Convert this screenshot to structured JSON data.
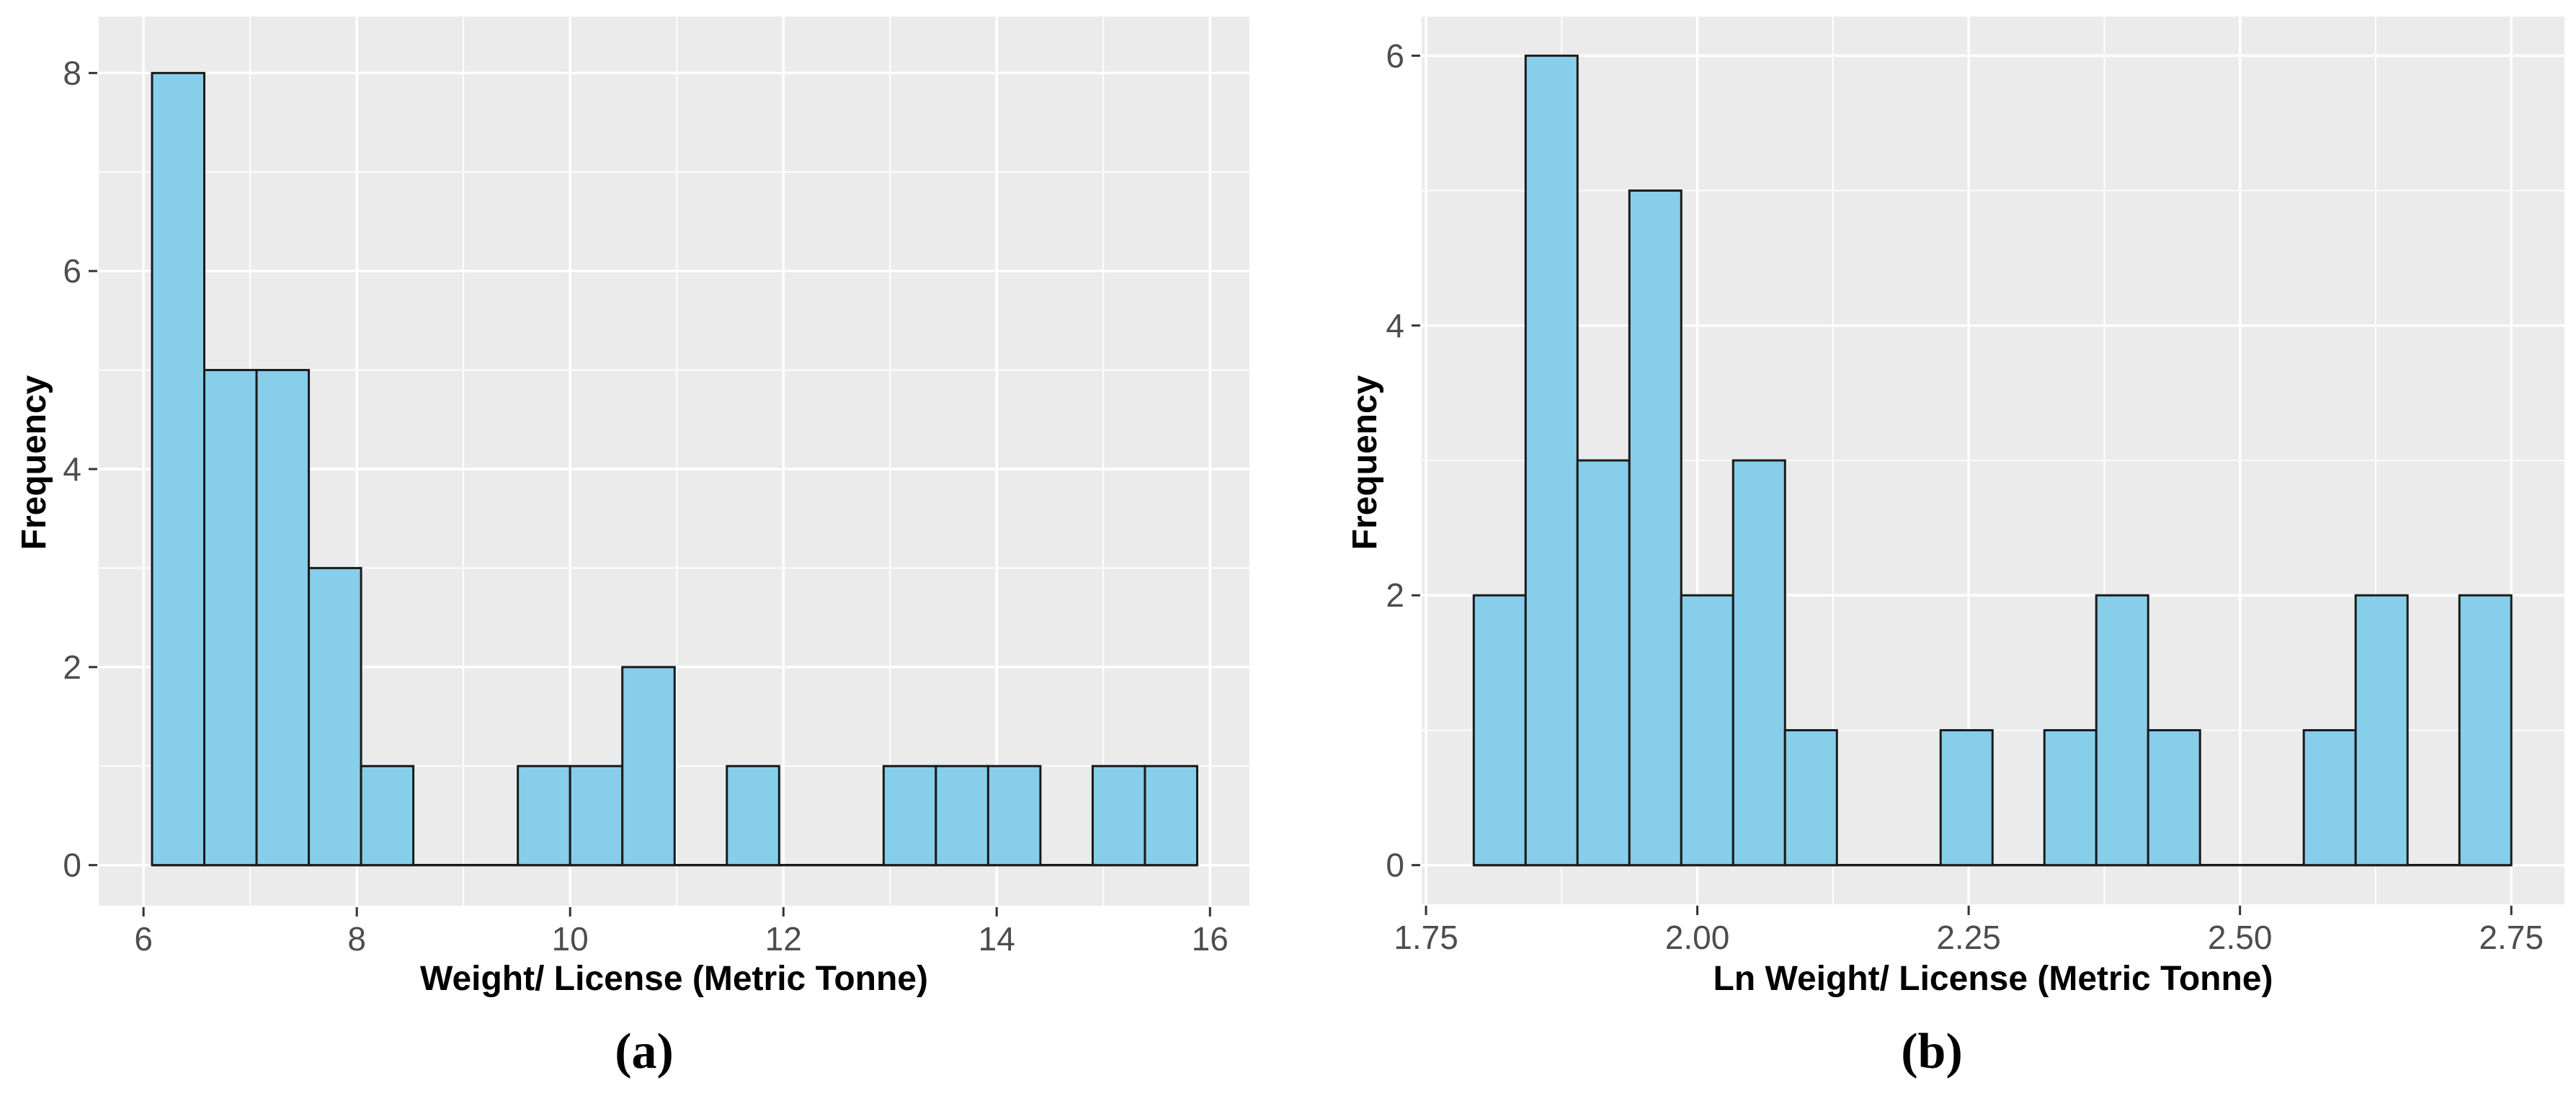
{
  "figure": {
    "background": "#ffffff",
    "description": "Two side-by-side frequency histograms"
  },
  "colors": {
    "bar_fill": "#87CEEB",
    "bar_stroke": "#1A1A1A",
    "panel_bg": "#EBEBEB",
    "grid": "#FFFFFF",
    "tick_text": "#4D4D4D",
    "tick_mark": "#333333",
    "axis_title": "#000000"
  },
  "chart_data": [
    {
      "type": "bar",
      "variant": "histogram",
      "panel": "a",
      "caption": "(a)",
      "title": "",
      "xlabel": "Weight/ License (Metric Tonne)",
      "ylabel": "Frequency",
      "bin_start": 6.08,
      "bin_width": 0.49,
      "counts": [
        8,
        5,
        5,
        3,
        1,
        0,
        0,
        1,
        1,
        2,
        0,
        1,
        0,
        0,
        1,
        1,
        1,
        0,
        1,
        1
      ],
      "total_observations": 32,
      "xlim": [
        5.58,
        16.37
      ],
      "ylim": [
        -0.41,
        8.57
      ],
      "x_ticks": [
        6,
        8,
        10,
        12,
        14,
        16
      ],
      "x_tick_labels": [
        "6",
        "8",
        "10",
        "12",
        "14",
        "16"
      ],
      "x_minor_ticks": [
        7,
        9,
        11,
        13,
        15
      ],
      "y_ticks": [
        0,
        2,
        4,
        6,
        8
      ],
      "y_tick_labels": [
        "0",
        "2",
        "4",
        "6",
        "8"
      ],
      "y_minor_ticks": [
        1,
        3,
        5,
        7
      ],
      "grid": "major+minor white on gray panel",
      "legend": "none"
    },
    {
      "type": "bar",
      "variant": "histogram",
      "panel": "b",
      "caption": "(b)",
      "title": "",
      "xlabel": "Ln Weight/ License (Metric Tonne)",
      "ylabel": "Frequency",
      "bin_start": 1.794,
      "bin_width": 0.0478,
      "counts": [
        2,
        6,
        3,
        5,
        2,
        3,
        1,
        0,
        0,
        1,
        0,
        1,
        2,
        1,
        0,
        0,
        1,
        2,
        0,
        2
      ],
      "total_observations": 32,
      "xlim": [
        1.746,
        2.799
      ],
      "ylim": [
        -0.29,
        6.29
      ],
      "x_ticks": [
        1.75,
        2.0,
        2.25,
        2.5,
        2.75
      ],
      "x_tick_labels": [
        "1.75",
        "2.00",
        "2.25",
        "2.50",
        "2.75"
      ],
      "x_minor_ticks": [
        1.875,
        2.125,
        2.375,
        2.625
      ],
      "y_ticks": [
        0,
        2,
        4,
        6
      ],
      "y_tick_labels": [
        "0",
        "2",
        "4",
        "6"
      ],
      "y_minor_ticks": [
        1,
        3,
        5
      ],
      "grid": "major+minor white on gray panel",
      "legend": "none"
    }
  ]
}
